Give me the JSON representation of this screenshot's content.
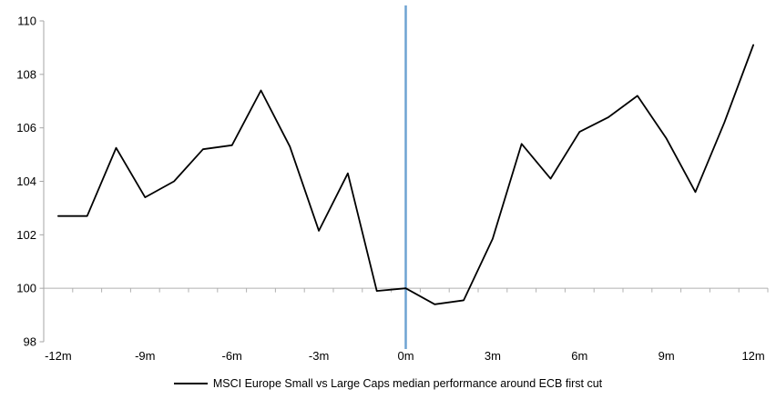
{
  "chart_data": {
    "type": "line",
    "title": "",
    "x": [
      -12,
      -11,
      -10,
      -9,
      -8,
      -7,
      -6,
      -5,
      -4,
      -3,
      -2,
      -1,
      0,
      1,
      2,
      3,
      4,
      5,
      6,
      7,
      8,
      9,
      10,
      11,
      12
    ],
    "series": [
      {
        "name": "MSCI Europe Small vs Large Caps median performance around ECB first cut",
        "values": [
          102.7,
          102.7,
          105.25,
          103.4,
          104.0,
          105.2,
          105.35,
          107.4,
          105.3,
          102.15,
          104.3,
          99.9,
          100.0,
          99.4,
          99.55,
          101.85,
          105.4,
          104.1,
          105.85,
          106.4,
          107.2,
          105.6,
          103.6,
          106.2,
          109.1
        ]
      }
    ],
    "x_axis": {
      "tick_values": [
        -12,
        -9,
        -6,
        -3,
        0,
        3,
        6,
        9,
        12
      ],
      "tick_labels": [
        "-12m",
        "-9m",
        "-6m",
        "-3m",
        "0m",
        "3m",
        "6m",
        "9m",
        "12m"
      ],
      "minor_ticks_every_category": true
    },
    "y_axis": {
      "min": 98,
      "max": 110,
      "ticks": [
        110,
        108,
        106,
        104,
        102,
        100,
        98
      ],
      "tick_labels": [
        "110",
        "108",
        "106",
        "104",
        "102",
        "100",
        "98"
      ]
    },
    "baseline_value": 100,
    "vline_x": 0,
    "grid": "off",
    "legend_position": "bottom-center",
    "colors": {
      "series_line": "#000000",
      "event_vline": "#6FA3D2",
      "axis_line": "#a6a6a6",
      "baseline_line": "#b0b0b0"
    }
  },
  "legend": {
    "label": "MSCI Europe Small vs Large Caps median performance around ECB first cut"
  }
}
